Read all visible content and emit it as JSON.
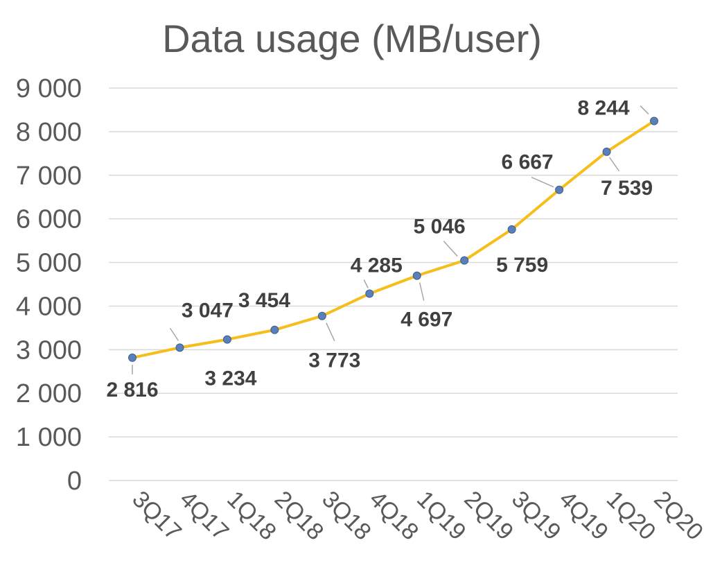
{
  "chart_data": {
    "type": "line",
    "title": "Data usage (MB/user)",
    "xlabel": "",
    "ylabel": "",
    "categories": [
      "3Q17",
      "4Q17",
      "1Q18",
      "2Q18",
      "3Q18",
      "4Q18",
      "1Q19",
      "2Q19",
      "3Q19",
      "4Q19",
      "1Q20",
      "2Q20"
    ],
    "series": [
      {
        "values": [
          2816,
          3047,
          3234,
          3454,
          3773,
          4285,
          4697,
          5046,
          5759,
          6667,
          7539,
          8244
        ],
        "labels": [
          "2 816",
          "3 047",
          "3 234",
          "3 454",
          "3 773",
          "4 285",
          "4 697",
          "5 046",
          "5 759",
          "6 667",
          "7 539",
          "8 244"
        ],
        "color": "#f5be1a",
        "marker_color": "#5b7fb8"
      }
    ],
    "ylim": [
      0,
      9000
    ],
    "y_ticks": [
      0,
      1000,
      2000,
      3000,
      4000,
      5000,
      6000,
      7000,
      8000,
      9000
    ],
    "y_tick_labels": [
      "0",
      "1 000",
      "2 000",
      "3 000",
      "4 000",
      "5 000",
      "6 000",
      "7 000",
      "8 000",
      "9 000"
    ],
    "grid": true,
    "legend": "none"
  }
}
